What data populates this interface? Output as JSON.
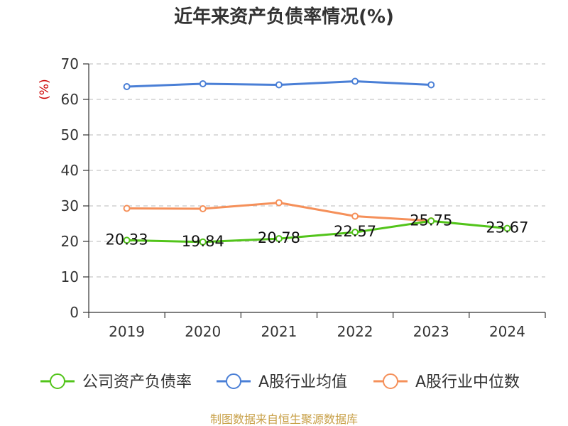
{
  "chart_data": {
    "type": "line",
    "title": "近年来资产负债率情况(%)",
    "ylabel": "(%)",
    "xlabel": "",
    "categories": [
      "2019",
      "2020",
      "2021",
      "2022",
      "2023",
      "2024"
    ],
    "ylim": [
      0,
      70
    ],
    "yticks": [
      0,
      10,
      20,
      30,
      40,
      50,
      60,
      70
    ],
    "grid": true,
    "legend_position": "bottom",
    "series": [
      {
        "name": "公司资产负债率",
        "color": "#52c41a",
        "values": [
          20.33,
          19.84,
          20.78,
          22.57,
          25.75,
          23.67
        ],
        "labels": [
          "20.33",
          "19.84",
          "20.78",
          "22.57",
          "25.75",
          "23.67"
        ]
      },
      {
        "name": "A股行业均值",
        "color": "#4a7fd6",
        "values": [
          63.6,
          64.4,
          64.1,
          65.1,
          64.1,
          null
        ]
      },
      {
        "name": "A股行业中位数",
        "color": "#f5905a",
        "values": [
          29.3,
          29.2,
          30.9,
          27.1,
          25.8,
          null
        ]
      }
    ]
  },
  "source": "制图数据来自恒生聚源数据库"
}
